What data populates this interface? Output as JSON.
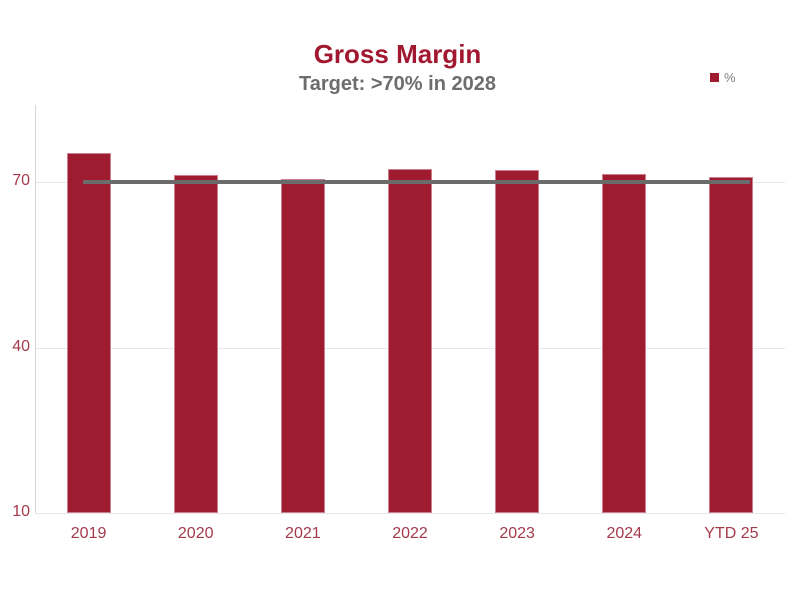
{
  "header": {
    "title": "Gross Margin",
    "subtitle": "Target: >70% in 2028"
  },
  "legend": {
    "label": "%"
  },
  "chart_data": {
    "type": "bar",
    "title": "Gross Margin",
    "subtitle": "Target: >70% in 2028",
    "categories": [
      "2019",
      "2020",
      "2021",
      "2022",
      "2023",
      "2024",
      "YTD 25"
    ],
    "series": [
      {
        "name": "%",
        "values": [
          75.3,
          71.3,
          70.6,
          72.4,
          72.3,
          71.5,
          71.0
        ]
      }
    ],
    "target_line": {
      "value": 70,
      "color": "#6b6b6b"
    },
    "yticks": [
      10,
      40,
      70
    ],
    "ylim": [
      10,
      84
    ],
    "grid": true,
    "legend_position": "top-right",
    "xlabel": "",
    "ylabel": "",
    "colors": {
      "bar": "#9e1b30",
      "title": "#a11830",
      "subtitle": "#6d6d6d",
      "tick_labels": "#a43a4a",
      "gridline": "#e8e8e8",
      "axis_line": "#d6d6d6",
      "legend_text": "#7f7f7f"
    }
  }
}
